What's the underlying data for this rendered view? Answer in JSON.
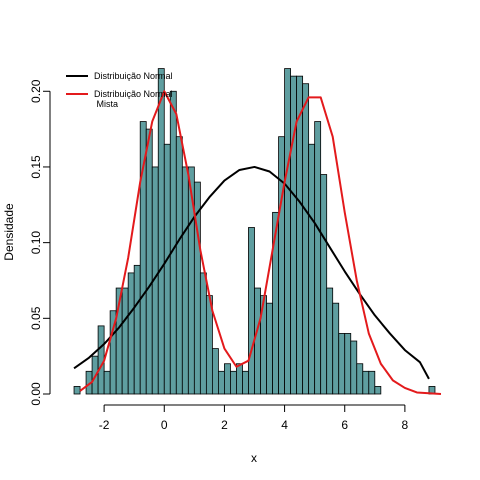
{
  "chart_data": {
    "type": "bar",
    "subtype": "histogram-with-density-curves",
    "title": "",
    "xlabel": "x",
    "ylabel": "Densidade",
    "xlim": [
      -3.5,
      9.5
    ],
    "ylim": [
      0,
      0.22
    ],
    "x_ticks": [
      -2,
      0,
      2,
      4,
      6,
      8
    ],
    "y_ticks": [
      0.0,
      0.05,
      0.1,
      0.15,
      0.2
    ],
    "grid": false,
    "legend_position": "top-left",
    "colors": {
      "bar_fill": "#5f9ea0",
      "bar_stroke": "#000000",
      "normal": "#000000",
      "mixture": "#e31a1c"
    },
    "bins": {
      "start": -3.0,
      "width": 0.2,
      "values": [
        0.005,
        0.0,
        0.015,
        0.025,
        0.045,
        0.015,
        0.055,
        0.07,
        0.07,
        0.08,
        0.085,
        0.18,
        0.175,
        0.15,
        0.215,
        0.165,
        0.2,
        0.17,
        0.15,
        0.15,
        0.14,
        0.08,
        0.065,
        0.03,
        0.015,
        0.02,
        0.015,
        0.02,
        0.015,
        0.11,
        0.07,
        0.065,
        0.06,
        0.12,
        0.17,
        0.215,
        0.21,
        0.21,
        0.205,
        0.165,
        0.18,
        0.145,
        0.07,
        0.06,
        0.04,
        0.04,
        0.035,
        0.02,
        0.015,
        0.015,
        0.005,
        0.0,
        0.0,
        0.0,
        0.0,
        0.0,
        0.0,
        0.0,
        0.0,
        0.005
      ]
    },
    "series": [
      {
        "name": "Distribuição Normal",
        "x": [
          -3.0,
          -2.5,
          -2.0,
          -1.5,
          -1.0,
          -0.5,
          0.0,
          0.5,
          1.0,
          1.5,
          2.0,
          2.5,
          3.0,
          3.5,
          4.0,
          4.5,
          5.0,
          5.5,
          6.0,
          6.5,
          7.0,
          7.5,
          8.0,
          8.5,
          8.8
        ],
        "y": [
          0.017,
          0.024,
          0.033,
          0.044,
          0.057,
          0.071,
          0.086,
          0.102,
          0.117,
          0.13,
          0.141,
          0.148,
          0.15,
          0.147,
          0.139,
          0.127,
          0.113,
          0.097,
          0.081,
          0.066,
          0.052,
          0.04,
          0.029,
          0.021,
          0.01
        ]
      },
      {
        "name": "Distribuição Normal\n Mista",
        "x": [
          -2.8,
          -2.4,
          -2.0,
          -1.6,
          -1.2,
          -0.8,
          -0.4,
          0.0,
          0.4,
          0.8,
          1.2,
          1.6,
          2.0,
          2.4,
          2.8,
          3.2,
          3.6,
          4.0,
          4.4,
          4.8,
          5.2,
          5.6,
          6.0,
          6.4,
          6.8,
          7.2,
          7.6,
          8.0,
          8.4,
          9.2
        ],
        "y": [
          0.002,
          0.008,
          0.022,
          0.05,
          0.09,
          0.14,
          0.18,
          0.2,
          0.185,
          0.145,
          0.095,
          0.055,
          0.03,
          0.018,
          0.022,
          0.05,
          0.095,
          0.14,
          0.18,
          0.196,
          0.196,
          0.17,
          0.12,
          0.075,
          0.04,
          0.02,
          0.009,
          0.004,
          0.001,
          0.0
        ]
      }
    ]
  }
}
